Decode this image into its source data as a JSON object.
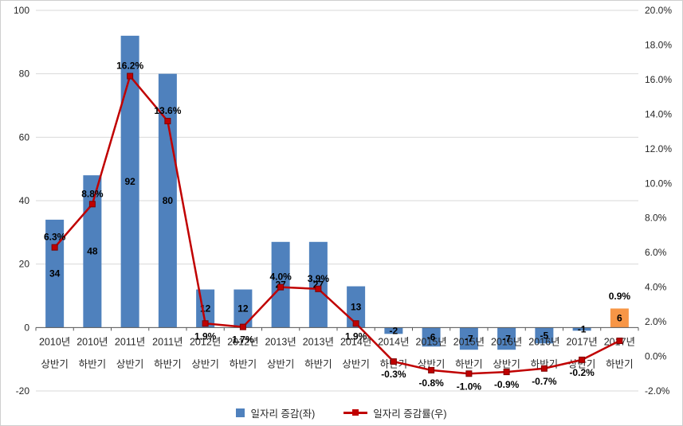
{
  "chart_data": {
    "type": "combo",
    "title": "",
    "categories": [
      "2010년 상반기",
      "2010년 하반기",
      "2011년 상반기",
      "2011년 하반기",
      "2012년 상반기",
      "2012년 하반기",
      "2013년 상반기",
      "2013년 하반기",
      "2014년 상반기",
      "2014년 하반기",
      "2015년 상반기",
      "2015년 하반기",
      "2016년 상반기",
      "2016년 하반기",
      "2017년 상반기",
      "2017년 하반기"
    ],
    "series": [
      {
        "name": "일자리 증감(좌)",
        "type": "bar",
        "axis": "left",
        "values": [
          34,
          48,
          92,
          80,
          12,
          12,
          27,
          27,
          13,
          -2,
          -6,
          -7,
          -7,
          -5,
          -1,
          6
        ],
        "labels": [
          "34",
          "48",
          "92",
          "80",
          "12",
          "12",
          "27",
          "27",
          "13",
          "-2",
          "-6",
          "-7",
          "-7",
          "-5",
          "-1",
          "6"
        ],
        "color": "#4F81BD",
        "highlight_index": 15,
        "highlight_color": "#F79646"
      },
      {
        "name": "일자리 증감률(우)",
        "type": "line",
        "axis": "right",
        "values": [
          6.3,
          8.8,
          16.2,
          13.6,
          1.9,
          1.7,
          4.0,
          3.9,
          1.9,
          -0.3,
          -0.8,
          -1.0,
          -0.9,
          -0.7,
          -0.2,
          0.9
        ],
        "labels": [
          "6.3%",
          "8.8%",
          "16.2%",
          "13.6%",
          "1.9%",
          "1.7%",
          "4.0%",
          "3.9%",
          "1.9%",
          "-0.3%",
          "-0.8%",
          "-1.0%",
          "-0.9%",
          "-0.7%",
          "-0.2%",
          "0.9%"
        ],
        "label_side": [
          "above",
          "above",
          "above",
          "above",
          "below",
          "below",
          "above",
          "above",
          "below",
          "below",
          "below",
          "below",
          "below",
          "below",
          "below",
          "above_far"
        ],
        "color": "#C00000",
        "marker": "square"
      }
    ],
    "left_axis": {
      "min": -20,
      "max": 100,
      "step": 20,
      "ticks": [
        "100",
        "80",
        "60",
        "40",
        "20",
        "0",
        "-20"
      ]
    },
    "right_axis": {
      "min": -2,
      "max": 20,
      "step": 2,
      "ticks": [
        "20.0%",
        "18.0%",
        "16.0%",
        "14.0%",
        "12.0%",
        "10.0%",
        "8.0%",
        "6.0%",
        "4.0%",
        "2.0%",
        "0.0%",
        "-2.0%"
      ]
    },
    "grid": "horizontal",
    "legend": {
      "position": "bottom",
      "items": [
        "일자리 증감(좌)",
        "일자리 증감률(우)"
      ]
    }
  },
  "colors": {
    "background": "#FFFFFF",
    "gridline": "#D9D9D9",
    "axis_line": "#595959",
    "text": "#262626",
    "data_label": "#000000"
  }
}
